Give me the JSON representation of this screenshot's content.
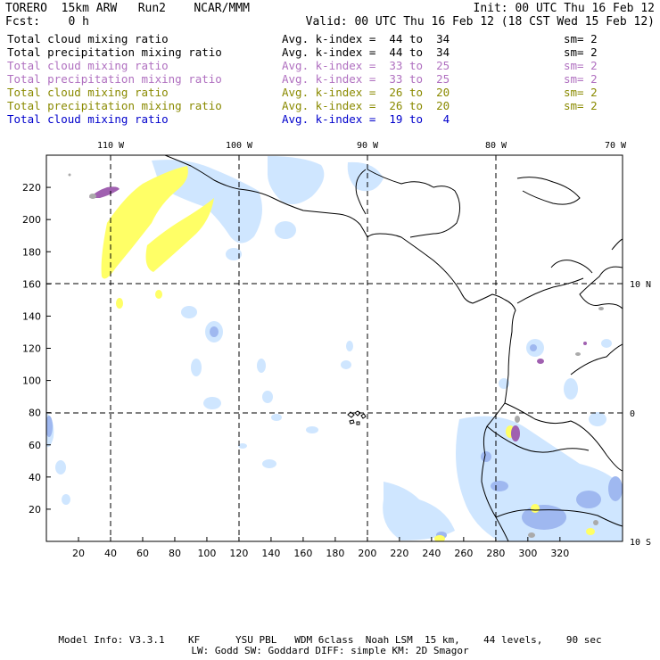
{
  "header": {
    "model": "TORERO  15km ARW   Run2    NCAR/MMM",
    "init": "Init: 00 UTC Thu 16 Feb 12",
    "fcst": "Fcst:    0 h",
    "valid": "Valid: 00 UTC Thu 16 Feb 12 (18 CST Wed 15 Feb 12)"
  },
  "legend": [
    {
      "field": "Total cloud mixing ratio",
      "kindex": "Avg. k-index =  44 to  34",
      "sm": "sm= 2",
      "color": "#000000"
    },
    {
      "field": "Total precipitation mixing ratio",
      "kindex": "Avg. k-index =  44 to  34",
      "sm": "sm= 2",
      "color": "#000000"
    },
    {
      "field": "Total cloud mixing ratio",
      "kindex": "Avg. k-index =  33 to  25",
      "sm": "sm= 2",
      "color": "#b070c0"
    },
    {
      "field": "Total precipitation mixing ratio",
      "kindex": "Avg. k-index =  33 to  25",
      "sm": "sm= 2",
      "color": "#b070c0"
    },
    {
      "field": "Total cloud mixing ratio",
      "kindex": "Avg. k-index =  26 to  20",
      "sm": "sm= 2",
      "color": "#8a8a00"
    },
    {
      "field": "Total precipitation mixing ratio",
      "kindex": "Avg. k-index =  26 to  20",
      "sm": "sm= 2",
      "color": "#8a8a00"
    },
    {
      "field": "Total cloud mixing ratio",
      "kindex": "Avg. k-index =  19 to   4",
      "sm": "",
      "color": "#0000cc"
    }
  ],
  "map": {
    "x_ticks": [
      "20",
      "40",
      "60",
      "80",
      "100",
      "120",
      "140",
      "160",
      "180",
      "200",
      "220",
      "240",
      "260",
      "280",
      "300",
      "320"
    ],
    "y_ticks": [
      "20",
      "40",
      "60",
      "80",
      "100",
      "120",
      "140",
      "160",
      "180",
      "200",
      "220"
    ],
    "lon_labels": [
      "110 W",
      "100 W",
      "90 W",
      "80 W",
      "70 W"
    ],
    "lat_labels": [
      "10 N",
      "0",
      "10 S"
    ],
    "colors": {
      "light_blue": "#cfe6ff",
      "mid_blue": "#9fb8f0",
      "yellow": "#ffff66",
      "violet": "#a060b0",
      "gray": "#aaaaaa"
    }
  },
  "footer": {
    "line1": "Model Info: V3.3.1    KF      YSU PBL   WDM 6class  Noah LSM  15 km,    44 levels,    90 sec",
    "line2": "LW: Godd SW: Goddard DIFF: simple KM: 2D Smagor"
  }
}
